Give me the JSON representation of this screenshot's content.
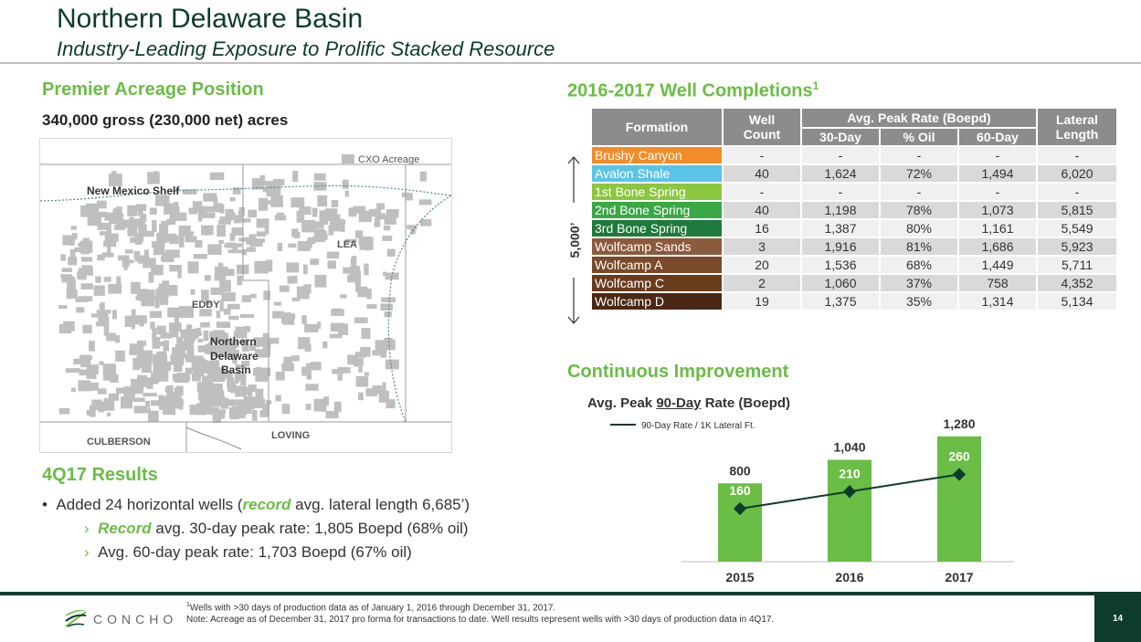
{
  "header": {
    "title": "Northern Delaware Basin",
    "subtitle": "Industry-Leading Exposure to Prolific Stacked Resource"
  },
  "acreage": {
    "heading": "Premier Acreage Position",
    "summary": "340,000 gross (230,000 net) acres",
    "map": {
      "legend": "CXO Acreage",
      "labels": {
        "nm_shelf": "New Mexico Shelf",
        "lea": "LEA",
        "eddy": "EDDY",
        "ndb_1": "Northern",
        "ndb_2": "Delaware",
        "ndb_3": "Basin",
        "loving": "LOVING",
        "culberson": "CULBERSON"
      },
      "colors": {
        "acreage": "#bfbfbf",
        "border": "#4a8a8a"
      }
    }
  },
  "results": {
    "heading": "4Q17 Results",
    "bullet1_pre": "Added 24 horizontal wells (",
    "bullet1_em": "record",
    "bullet1_post": " avg. lateral length 6,685’)",
    "sub1_em": "Record",
    "sub1_post": " avg. 30-day peak rate: 1,805 Boepd (68% oil)",
    "sub2": "Avg. 60-day peak rate: 1,703 Boepd (67% oil)",
    "bullet_glyph": "•",
    "sub_glyph": "›"
  },
  "completions": {
    "heading": "2016-2017 Well Completions",
    "heading_sup": "1",
    "depth_label": "5,000’",
    "headers": {
      "formation": "Formation",
      "well_count_1": "Well",
      "well_count_2": "Count",
      "peak_group": "Avg. Peak Rate (Boepd)",
      "d30": "30-Day",
      "oil": "% Oil",
      "d60": "60-Day",
      "lateral_1": "Lateral",
      "lateral_2": "Length"
    },
    "rows": [
      {
        "formation": "Brushy Canyon",
        "color": "#f28c28",
        "count": "-",
        "d30": "-",
        "oil": "-",
        "d60": "-",
        "lateral": "-"
      },
      {
        "formation": "Avalon Shale",
        "color": "#5bc4e6",
        "count": "40",
        "d30": "1,624",
        "oil": "72%",
        "d60": "1,494",
        "lateral": "6,020"
      },
      {
        "formation": "1st Bone Spring",
        "color": "#8cc63f",
        "count": "-",
        "d30": "-",
        "oil": "-",
        "d60": "-",
        "lateral": "-"
      },
      {
        "formation": "2nd Bone Spring",
        "color": "#39a845",
        "count": "40",
        "d30": "1,198",
        "oil": "78%",
        "d60": "1,073",
        "lateral": "5,815"
      },
      {
        "formation": "3rd Bone Spring",
        "color": "#1e7a3c",
        "count": "16",
        "d30": "1,387",
        "oil": "80%",
        "d60": "1,161",
        "lateral": "5,549"
      },
      {
        "formation": "Wolfcamp Sands",
        "color": "#8c5a3c",
        "count": "3",
        "d30": "1,916",
        "oil": "81%",
        "d60": "1,686",
        "lateral": "5,923"
      },
      {
        "formation": "Wolfcamp A",
        "color": "#7a4a2a",
        "count": "20",
        "d30": "1,536",
        "oil": "68%",
        "d60": "1,449",
        "lateral": "5,711"
      },
      {
        "formation": "Wolfcamp C",
        "color": "#6a3c1e",
        "count": "2",
        "d30": "1,060",
        "oil": "37%",
        "d60": "758",
        "lateral": "4,352"
      },
      {
        "formation": "Wolfcamp D",
        "color": "#4a2814",
        "count": "19",
        "d30": "1,375",
        "oil": "35%",
        "d60": "1,314",
        "lateral": "5,134"
      }
    ]
  },
  "improvement": {
    "heading": "Continuous Improvement"
  },
  "chart_data": {
    "type": "bar",
    "title_pre": "Avg. Peak ",
    "title_u": "90-Day",
    "title_post": " Rate (Boepd)",
    "categories": [
      "2015",
      "2016",
      "2017"
    ],
    "series": [
      {
        "values": [
          800,
          1040,
          1280
        ],
        "value_labels": [
          "800",
          "1,040",
          "1,280"
        ],
        "color": "#6abd45"
      },
      {
        "name": "90-Day Rate / 1K Lateral Ft.",
        "values": [
          160,
          210,
          260
        ],
        "value_labels": [
          "160",
          "210",
          "260"
        ],
        "color": "#0d3b2e",
        "line": true
      }
    ],
    "ylim": [
      0,
      1400
    ],
    "line_ylim": [
      0,
      400
    ],
    "grid": false,
    "legend": "top-left"
  },
  "footer": {
    "brand": "CONCHO",
    "footnote1_sup": "1",
    "footnote1": "Wells with >30 days of production data as of January 1, 2016 through December 31, 2017.",
    "footnote2": "Note: Acreage as of December 31, 2017 pro forma for transactions to date. Well results represent wells with >30 days of production data in 4Q17.",
    "page": "14"
  }
}
